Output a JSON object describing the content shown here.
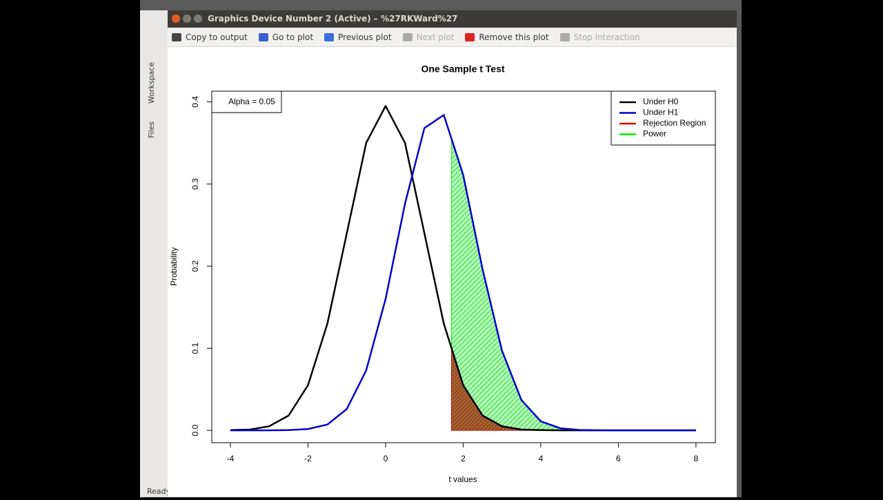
{
  "window": {
    "title": "Graphics Device Number 2 (Active) – %27RKWard%27"
  },
  "toolbar": [
    {
      "label": "Copy to output",
      "enabled": true,
      "color": "#444444"
    },
    {
      "label": "Go to plot",
      "enabled": true,
      "color": "#3a5fcd"
    },
    {
      "label": "Previous plot",
      "enabled": true,
      "color": "#3a6fd8"
    },
    {
      "label": "Next plot",
      "enabled": false,
      "color": "#aaaaaa"
    },
    {
      "label": "Remove this plot",
      "enabled": true,
      "color": "#dd2222"
    },
    {
      "label": "Stop interaction",
      "enabled": false,
      "color": "#aaaaaa"
    }
  ],
  "sidebar": {
    "tabs": [
      "Workspace",
      "Files"
    ],
    "status": "Ready"
  },
  "chart_data": {
    "type": "line",
    "title": "One Sample t Test",
    "x_label": "t values",
    "y_label": "Probability",
    "x": [
      -4,
      -3.5,
      -3,
      -2.5,
      -2,
      -1.5,
      -1,
      -0.5,
      0,
      0.5,
      1,
      1.5,
      2,
      2.5,
      3,
      3.5,
      4,
      4.5,
      5,
      5.5,
      6,
      6.5,
      7,
      7.5,
      8
    ],
    "series": [
      {
        "name": "Under H0",
        "color": "#000000",
        "values": [
          0.0003,
          0.001,
          0.005,
          0.018,
          0.055,
          0.13,
          0.24,
          0.35,
          0.395,
          0.35,
          0.24,
          0.13,
          0.055,
          0.018,
          0.005,
          0.001,
          0.0003,
          0,
          0,
          0,
          0,
          0,
          0,
          0,
          0
        ]
      },
      {
        "name": "Under H1",
        "color": "#0000cc",
        "values": [
          0,
          1e-05,
          3e-05,
          0.0003,
          0.0016,
          0.0071,
          0.026,
          0.073,
          0.16,
          0.276,
          0.368,
          0.384,
          0.311,
          0.196,
          0.097,
          0.037,
          0.011,
          0.0026,
          0.0005,
          0.0001,
          0,
          0,
          0,
          0,
          0
        ]
      }
    ],
    "areas": [
      {
        "name": "Power",
        "color": "#00ee00",
        "fill": "#33dd33",
        "under": 1
      },
      {
        "name": "Rejection Region",
        "color": "#dd0000",
        "fill": "#b05020",
        "under": 0
      }
    ],
    "critical_value": 1.7,
    "annotation": "Alpha = 0.05",
    "xlim": [
      -4.48,
      8.5
    ],
    "ylim": [
      -0.015,
      0.413
    ],
    "xticks": [
      -4,
      -2,
      0,
      2,
      4,
      6,
      8
    ],
    "yticks": [
      {
        "value": 0,
        "label": "0.0"
      },
      0.1,
      0.2,
      0.3,
      0.4
    ],
    "legend_position": "topright"
  }
}
